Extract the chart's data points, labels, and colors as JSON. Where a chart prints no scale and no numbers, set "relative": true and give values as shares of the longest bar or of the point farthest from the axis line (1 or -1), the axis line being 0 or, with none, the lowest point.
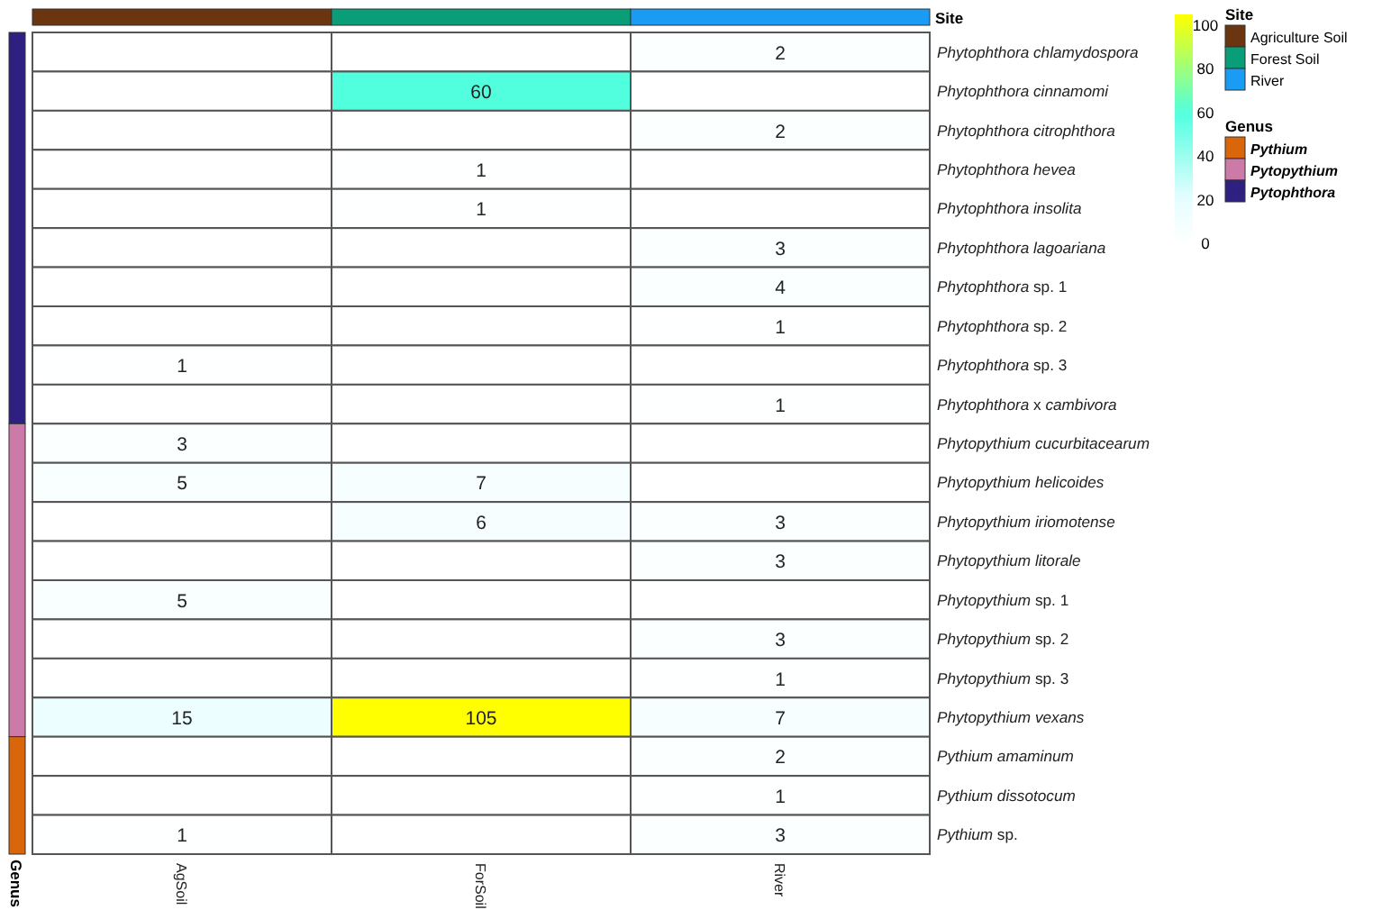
{
  "chart_data": [
    {
      "type": "heatmap",
      "data_labels": true,
      "clim": [
        0,
        105
      ],
      "cticks": [
        0,
        20,
        40,
        60,
        80,
        100
      ],
      "categories": [
        "AgSoil",
        "ForSoil",
        "River"
      ],
      "y_categories": [
        "Phytophthora chlamydospora",
        "Phytophthora cinnamomi",
        "Phytophthora citrophthora",
        "Phytophthora hevea",
        "Phytophthora insolita",
        "Phytophthora lagoariana",
        "Phytophthora sp. 1",
        "Phytophthora sp. 2",
        "Phytophthora sp. 3",
        "Phytophthora x cambivora",
        "Phytopythium cucurbitacearum",
        "Phytopythium helicoides",
        "Phytopythium iriomotense",
        "Phytopythium litorale",
        "Phytopythium sp. 1",
        "Phytopythium sp. 2",
        "Phytopythium sp. 3",
        "Phytopythium vexans",
        "Pythium amaminum",
        "Pythium dissotocum",
        "Pythium sp."
      ],
      "cells": [
        [
          null,
          null,
          2
        ],
        [
          null,
          60,
          null
        ],
        [
          null,
          null,
          2
        ],
        [
          null,
          1,
          null
        ],
        [
          null,
          1,
          null
        ],
        [
          null,
          null,
          3
        ],
        [
          null,
          null,
          4
        ],
        [
          null,
          null,
          1
        ],
        [
          1,
          null,
          null
        ],
        [
          null,
          null,
          1
        ],
        [
          3,
          null,
          null
        ],
        [
          5,
          7,
          null
        ],
        [
          null,
          6,
          3
        ],
        [
          null,
          null,
          3
        ],
        [
          5,
          null,
          null
        ],
        [
          null,
          null,
          3
        ],
        [
          null,
          null,
          1
        ],
        [
          15,
          105,
          7
        ],
        [
          null,
          null,
          2
        ],
        [
          null,
          null,
          1
        ],
        [
          1,
          null,
          3
        ]
      ]
    },
    {
      "type": "bar",
      "relative": true,
      "ylabel": "Site",
      "legend_title": "Site",
      "legend": "right",
      "categories": [
        null,
        null,
        null
      ],
      "series": [
        {
          "name": "Agriculture Soil",
          "color": "#6b3510",
          "values": [
            1,
            null,
            null
          ]
        },
        {
          "name": "Forest Soil",
          "color": "#0a9e78",
          "values": [
            null,
            1,
            null
          ]
        },
        {
          "name": "River",
          "color": "#1a9cf5",
          "values": [
            null,
            null,
            1
          ]
        }
      ]
    },
    {
      "type": "bar",
      "stacked": true,
      "relative": true,
      "ylabel": "Genus",
      "legend_title": "Genus",
      "legend": "right",
      "categories": [
        null
      ],
      "series": [
        {
          "name": "Pythium",
          "color": "#d9660a",
          "values": [
            0.143
          ]
        },
        {
          "name": "Pytopythium",
          "color": "#cc7aa8",
          "values": [
            0.381
          ]
        },
        {
          "name": "Pytophthora",
          "color": "#2e2080",
          "values": [
            0.476
          ]
        }
      ]
    }
  ]
}
